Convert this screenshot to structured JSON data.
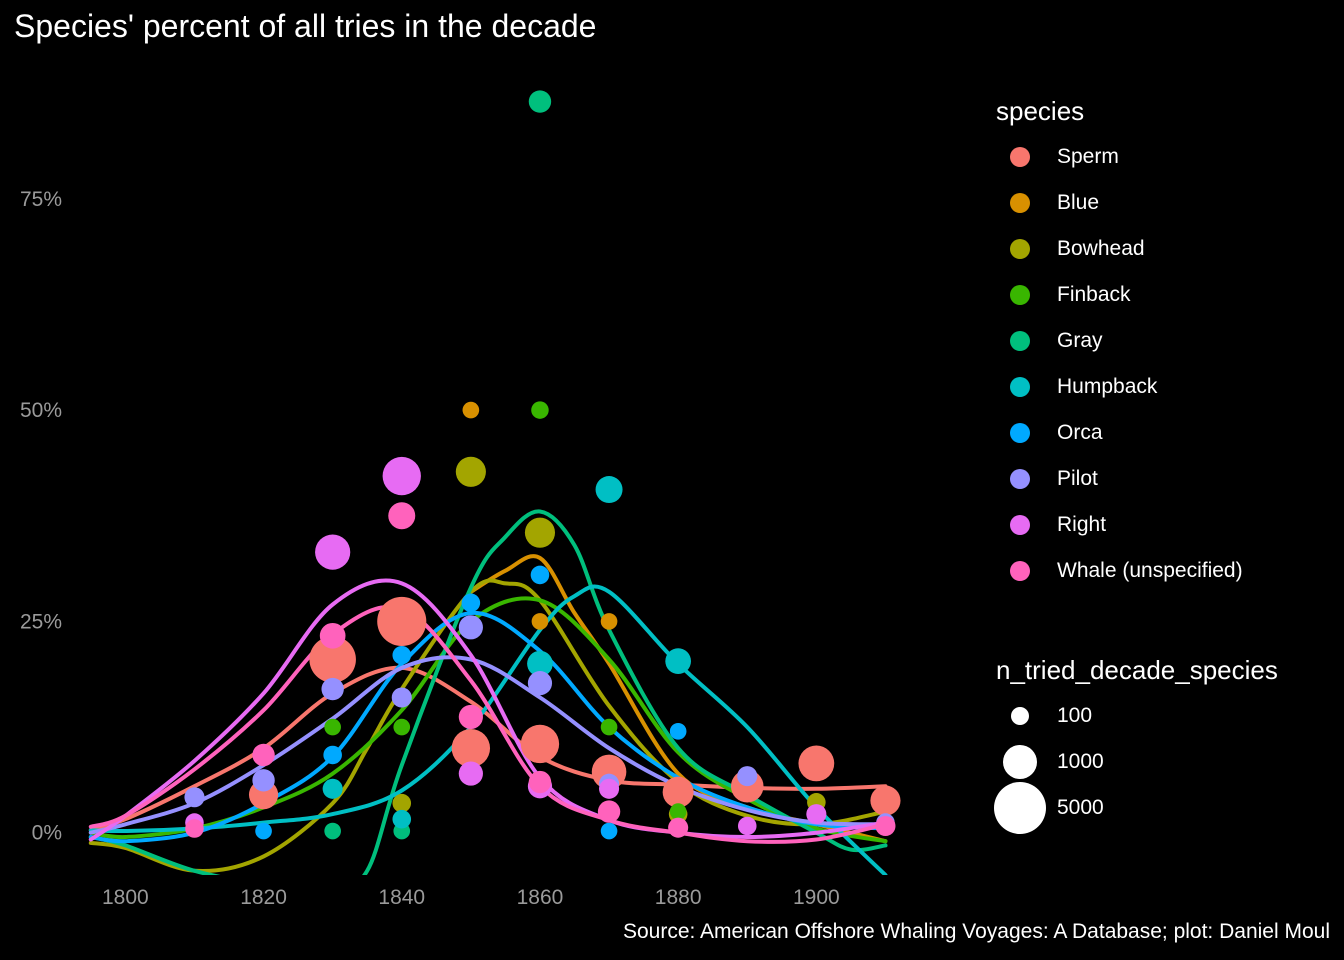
{
  "chart_data": {
    "type": "scatter",
    "title": "Species' percent of all tries in the decade",
    "caption": "Source: American Offshore Whaling Voyages: A Database; plot: Daniel Moul",
    "xlabel": "",
    "ylabel": "",
    "xlim": [
      1793,
      1915
    ],
    "ylim": [
      -5,
      90
    ],
    "x_ticks": [
      1800,
      1820,
      1840,
      1860,
      1880,
      1900
    ],
    "x_tick_labels": [
      "1800",
      "1820",
      "1840",
      "1860",
      "1880",
      "1900"
    ],
    "y_ticks": [
      0,
      25,
      50,
      75
    ],
    "y_tick_labels": [
      "0%",
      "25%",
      "50%",
      "75%"
    ],
    "grid": false,
    "legend_position": "right",
    "legend_title": "species",
    "size_legend_title": "n_tried_decade_species",
    "size_legend": [
      {
        "label": "100",
        "n": 100
      },
      {
        "label": "1000",
        "n": 1000
      },
      {
        "label": "5000",
        "n": 5000
      }
    ],
    "series": [
      {
        "name": "Sperm",
        "color": "#F8766D",
        "points": [
          [
            1820,
            4.5,
            800
          ],
          [
            1830,
            20.5,
            4500
          ],
          [
            1840,
            25,
            5500
          ],
          [
            1850,
            10,
            2200
          ],
          [
            1860,
            10.5,
            2200
          ],
          [
            1870,
            7.2,
            1500
          ],
          [
            1880,
            4.8,
            1000
          ],
          [
            1890,
            5.5,
            1200
          ],
          [
            1900,
            8.2,
            1700
          ],
          [
            1910,
            3.8,
            900
          ]
        ],
        "smooth": [
          [
            1795,
            0.3
          ],
          [
            1800,
            1.6
          ],
          [
            1810,
            5.5
          ],
          [
            1820,
            10
          ],
          [
            1830,
            16.5
          ],
          [
            1840,
            19.5
          ],
          [
            1850,
            15.5
          ],
          [
            1860,
            9
          ],
          [
            1870,
            6.2
          ],
          [
            1880,
            5.7
          ],
          [
            1890,
            5.3
          ],
          [
            1900,
            5.2
          ],
          [
            1910,
            5.5
          ]
        ]
      },
      {
        "name": "Blue",
        "color": "#D89000",
        "points": [
          [
            1850,
            50,
            100
          ],
          [
            1860,
            25,
            100
          ],
          [
            1870,
            25,
            100
          ]
        ],
        "smooth": [
          [
            1850,
            28.5
          ],
          [
            1855,
            31
          ],
          [
            1860,
            32.5
          ],
          [
            1865,
            26
          ],
          [
            1870,
            20
          ],
          [
            1880,
            7
          ],
          [
            1890,
            3
          ],
          [
            1900,
            1
          ],
          [
            1910,
            -1
          ]
        ]
      },
      {
        "name": "Bowhead",
        "color": "#A3A500",
        "points": [
          [
            1840,
            3.5,
            150
          ],
          [
            1850,
            42.7,
            900
          ],
          [
            1860,
            35.5,
            900
          ],
          [
            1880,
            2.2,
            150
          ],
          [
            1900,
            3.6,
            150
          ]
        ],
        "smooth": [
          [
            1795,
            -1.2
          ],
          [
            1800,
            -1.8
          ],
          [
            1810,
            -4.5
          ],
          [
            1820,
            -2.8
          ],
          [
            1830,
            3.5
          ],
          [
            1835,
            10
          ],
          [
            1840,
            17
          ],
          [
            1850,
            28.5
          ],
          [
            1855,
            29.5
          ],
          [
            1860,
            27.5
          ],
          [
            1870,
            15
          ],
          [
            1880,
            6
          ],
          [
            1890,
            2
          ],
          [
            1900,
            1
          ],
          [
            1910,
            2.5
          ]
        ]
      },
      {
        "name": "Finback",
        "color": "#39B600",
        "points": [
          [
            1830,
            12.5,
            100
          ],
          [
            1840,
            12.5,
            100
          ],
          [
            1860,
            50,
            120
          ],
          [
            1870,
            12.5,
            100
          ],
          [
            1880,
            2.5,
            100
          ]
        ],
        "smooth": [
          [
            1795,
            0
          ],
          [
            1800,
            -0.5
          ],
          [
            1810,
            0.5
          ],
          [
            1820,
            3
          ],
          [
            1830,
            7
          ],
          [
            1840,
            14.5
          ],
          [
            1850,
            25
          ],
          [
            1860,
            27.5
          ],
          [
            1870,
            20.5
          ],
          [
            1880,
            9.5
          ],
          [
            1890,
            4
          ],
          [
            1900,
            0.5
          ],
          [
            1910,
            -1
          ]
        ]
      },
      {
        "name": "Gray",
        "color": "#00BF7D",
        "points": [
          [
            1830,
            0.2,
            100
          ],
          [
            1840,
            0.2,
            100
          ],
          [
            1860,
            86.5,
            300
          ]
        ],
        "smooth": [
          [
            1795,
            -0.5
          ],
          [
            1800,
            -1.5
          ],
          [
            1810,
            -4.5
          ],
          [
            1820,
            -6
          ],
          [
            1830,
            -6
          ],
          [
            1835,
            -4.5
          ],
          [
            1840,
            8
          ],
          [
            1850,
            29
          ],
          [
            1855,
            35
          ],
          [
            1860,
            38
          ],
          [
            1865,
            34
          ],
          [
            1870,
            24
          ],
          [
            1880,
            10
          ],
          [
            1890,
            4.5
          ],
          [
            1900,
            0
          ],
          [
            1905,
            -2
          ],
          [
            1910,
            -1.5
          ]
        ]
      },
      {
        "name": "Humpback",
        "color": "#00BFC4",
        "points": [
          [
            1830,
            5.2,
            200
          ],
          [
            1840,
            1.6,
            150
          ],
          [
            1860,
            20,
            500
          ],
          [
            1870,
            40.6,
            600
          ],
          [
            1880,
            20.3,
            500
          ]
        ],
        "smooth": [
          [
            1795,
            0.3
          ],
          [
            1800,
            0.2
          ],
          [
            1810,
            0.5
          ],
          [
            1820,
            1.2
          ],
          [
            1830,
            2.2
          ],
          [
            1840,
            5
          ],
          [
            1850,
            12.5
          ],
          [
            1860,
            24
          ],
          [
            1865,
            28
          ],
          [
            1870,
            28.5
          ],
          [
            1880,
            20
          ],
          [
            1890,
            12.5
          ],
          [
            1900,
            3
          ],
          [
            1910,
            -5
          ]
        ]
      },
      {
        "name": "Orca",
        "color": "#00A9FF",
        "points": [
          [
            1820,
            0.2,
            100
          ],
          [
            1830,
            9.2,
            150
          ],
          [
            1840,
            21,
            150
          ],
          [
            1850,
            27.2,
            150
          ],
          [
            1860,
            30.5,
            150
          ],
          [
            1870,
            0.2,
            100
          ],
          [
            1880,
            12,
            100
          ]
        ],
        "smooth": [
          [
            1795,
            -0.5
          ],
          [
            1800,
            -1
          ],
          [
            1810,
            0
          ],
          [
            1820,
            3.5
          ],
          [
            1830,
            9
          ],
          [
            1840,
            20
          ],
          [
            1850,
            26
          ],
          [
            1860,
            21.5
          ],
          [
            1870,
            12.5
          ],
          [
            1880,
            6.5
          ],
          [
            1890,
            3
          ],
          [
            1900,
            1
          ],
          [
            1910,
            0.5
          ]
        ]
      },
      {
        "name": "Pilot",
        "color": "#9590FF",
        "points": [
          [
            1810,
            4.2,
            200
          ],
          [
            1820,
            6.2,
            300
          ],
          [
            1830,
            17,
            300
          ],
          [
            1840,
            16,
            200
          ],
          [
            1850,
            24.3,
            400
          ],
          [
            1860,
            17.7,
            400
          ],
          [
            1870,
            5.8,
            200
          ],
          [
            1890,
            6.7,
            200
          ],
          [
            1910,
            1.2,
            150
          ]
        ],
        "smooth": [
          [
            1795,
            0
          ],
          [
            1800,
            1
          ],
          [
            1810,
            3.5
          ],
          [
            1820,
            8
          ],
          [
            1830,
            13.5
          ],
          [
            1840,
            19.5
          ],
          [
            1850,
            20.5
          ],
          [
            1860,
            16
          ],
          [
            1870,
            10
          ],
          [
            1880,
            5.5
          ],
          [
            1890,
            2.7
          ],
          [
            1900,
            1.2
          ],
          [
            1910,
            1
          ]
        ]
      },
      {
        "name": "Right",
        "color": "#E76BF3",
        "points": [
          [
            1810,
            1.2,
            150
          ],
          [
            1830,
            33.2,
            1600
          ],
          [
            1840,
            42.2,
            2200
          ],
          [
            1850,
            7,
            400
          ],
          [
            1860,
            5.5,
            400
          ],
          [
            1870,
            5.2,
            200
          ],
          [
            1890,
            0.8,
            150
          ],
          [
            1900,
            2.2,
            200
          ]
        ],
        "smooth": [
          [
            1795,
            -0.8
          ],
          [
            1800,
            2
          ],
          [
            1810,
            8.5
          ],
          [
            1820,
            16.5
          ],
          [
            1830,
            27
          ],
          [
            1840,
            29.5
          ],
          [
            1850,
            21
          ],
          [
            1860,
            6.5
          ],
          [
            1870,
            1.5
          ],
          [
            1880,
            0
          ],
          [
            1890,
            -0.5
          ],
          [
            1900,
            0
          ],
          [
            1910,
            1.2
          ]
        ]
      },
      {
        "name": "Whale (unspecified)",
        "color": "#FF62BC",
        "points": [
          [
            1810,
            0.5,
            150
          ],
          [
            1820,
            9.2,
            300
          ],
          [
            1830,
            23.3,
            500
          ],
          [
            1840,
            37.5,
            600
          ],
          [
            1850,
            13.7,
            400
          ],
          [
            1860,
            6,
            300
          ],
          [
            1870,
            2.5,
            300
          ],
          [
            1880,
            0.6,
            200
          ],
          [
            1910,
            0.8,
            200
          ]
        ],
        "smooth": [
          [
            1795,
            0.7
          ],
          [
            1800,
            2
          ],
          [
            1810,
            7.5
          ],
          [
            1820,
            14.5
          ],
          [
            1830,
            23.5
          ],
          [
            1840,
            26.5
          ],
          [
            1850,
            18
          ],
          [
            1860,
            5.5
          ],
          [
            1870,
            1.5
          ],
          [
            1880,
            0
          ],
          [
            1890,
            -1
          ],
          [
            1900,
            -0.8
          ],
          [
            1910,
            1
          ]
        ]
      }
    ]
  }
}
